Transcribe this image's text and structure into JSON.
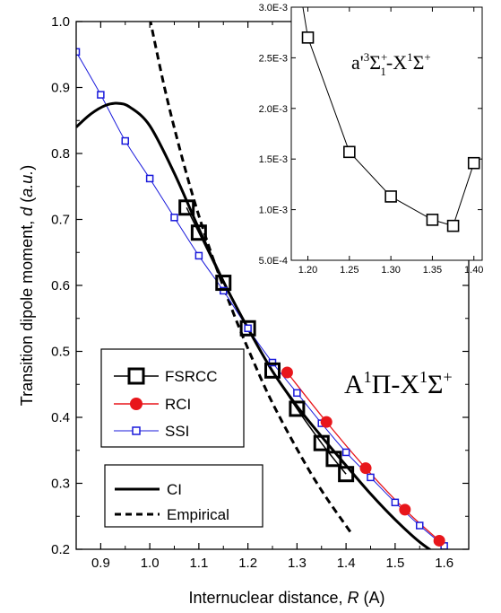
{
  "chart_data": [
    {
      "type": "line",
      "title": "",
      "annotation": {
        "base": "A",
        "sup1": "1",
        "mid": "Π-X",
        "sup2": "1",
        "end": "Σ",
        "sup3": "+"
      },
      "xlabel": {
        "text": "Internuclear distance, ",
        "var": "R",
        "unit": " (A)"
      },
      "ylabel": {
        "text": "Transition dipole moment, ",
        "var": "d",
        "unit_open": " (",
        "unit": "a.u.",
        "unit_close": ")"
      },
      "xlim": [
        0.85,
        1.65
      ],
      "ylim": [
        0.2,
        1.0
      ],
      "xticks": [
        "0.9",
        "1.0",
        "1.1",
        "1.2",
        "1.3",
        "1.4",
        "1.5",
        "1.6"
      ],
      "yticks": [
        "0.2",
        "0.3",
        "0.4",
        "0.5",
        "0.6",
        "0.7",
        "0.8",
        "0.9",
        "1.0"
      ],
      "series": [
        {
          "name": "FSRCC",
          "color": "#000000",
          "marker": "square-open-large",
          "x": [
            1.075,
            1.1,
            1.15,
            1.2,
            1.25,
            1.3,
            1.35,
            1.375,
            1.4
          ],
          "y": [
            0.718,
            0.68,
            0.604,
            0.535,
            0.471,
            0.413,
            0.361,
            0.337,
            0.314
          ]
        },
        {
          "name": "RCI",
          "color": "#e8161b",
          "marker": "circle-filled",
          "x": [
            1.28,
            1.36,
            1.44,
            1.52,
            1.59
          ],
          "y": [
            0.468,
            0.393,
            0.323,
            0.26,
            0.213
          ]
        },
        {
          "name": "SSI",
          "color": "#1a1adb",
          "marker": "square-open-small",
          "x": [
            0.85,
            0.9,
            0.95,
            1.0,
            1.05,
            1.1,
            1.15,
            1.2,
            1.25,
            1.3,
            1.35,
            1.4,
            1.45,
            1.5,
            1.55,
            1.6
          ],
          "y": [
            0.954,
            0.889,
            0.819,
            0.762,
            0.703,
            0.645,
            0.592,
            0.535,
            0.483,
            0.437,
            0.391,
            0.347,
            0.309,
            0.271,
            0.236,
            0.205
          ]
        },
        {
          "name": "CI",
          "color": "#000000",
          "style": "solid-thick",
          "x": [
            0.85,
            0.88,
            0.91,
            0.935,
            0.96,
            1.0,
            1.05,
            1.1,
            1.15,
            1.2,
            1.25,
            1.3,
            1.35,
            1.4,
            1.45,
            1.5,
            1.55,
            1.6
          ],
          "y": [
            0.84,
            0.86,
            0.873,
            0.876,
            0.87,
            0.842,
            0.77,
            0.686,
            0.606,
            0.535,
            0.47,
            0.417,
            0.371,
            0.327,
            0.284,
            0.245,
            0.211,
            0.185
          ]
        },
        {
          "name": "Empirical",
          "color": "#000000",
          "style": "dashed",
          "x": [
            1.0,
            1.03,
            1.06,
            1.09,
            1.12,
            1.15,
            1.18,
            1.21,
            1.24,
            1.27,
            1.3,
            1.33,
            1.36,
            1.39,
            1.41
          ],
          "y": [
            1.005,
            0.9,
            0.81,
            0.73,
            0.66,
            0.598,
            0.54,
            0.487,
            0.437,
            0.393,
            0.352,
            0.313,
            0.278,
            0.246,
            0.225
          ]
        }
      ],
      "legends": [
        {
          "position": "left-middle",
          "entries": [
            "FSRCC",
            "RCI",
            "SSI"
          ]
        },
        {
          "position": "bottom-left",
          "entries": [
            "CI",
            "Empirical"
          ]
        }
      ],
      "grid": false
    },
    {
      "type": "line",
      "title": "",
      "annotation": {
        "base": "a'",
        "sup1": "3",
        "mid": "Σ",
        "sup1b": "+",
        "sub1": "1",
        "dash": "-X",
        "sup2": "1",
        "end": "Σ",
        "sup3": "+"
      },
      "xlim": [
        1.18,
        1.41
      ],
      "ylim": [
        0.0005,
        0.003
      ],
      "xticks": [
        "1.20",
        "1.25",
        "1.30",
        "1.35",
        "1.40"
      ],
      "yticks": [
        "5.0E-4",
        "1.0E-3",
        "1.5E-3",
        "2.0E-3",
        "2.5E-3",
        "3.0E-3"
      ],
      "series": [
        {
          "name": "",
          "color": "#000000",
          "marker": "square-open",
          "x": [
            1.2,
            1.25,
            1.3,
            1.35,
            1.375,
            1.4
          ],
          "y": [
            0.0027,
            0.00157,
            0.00113,
            0.0009,
            0.00084,
            0.00146
          ]
        }
      ],
      "grid": false
    }
  ]
}
